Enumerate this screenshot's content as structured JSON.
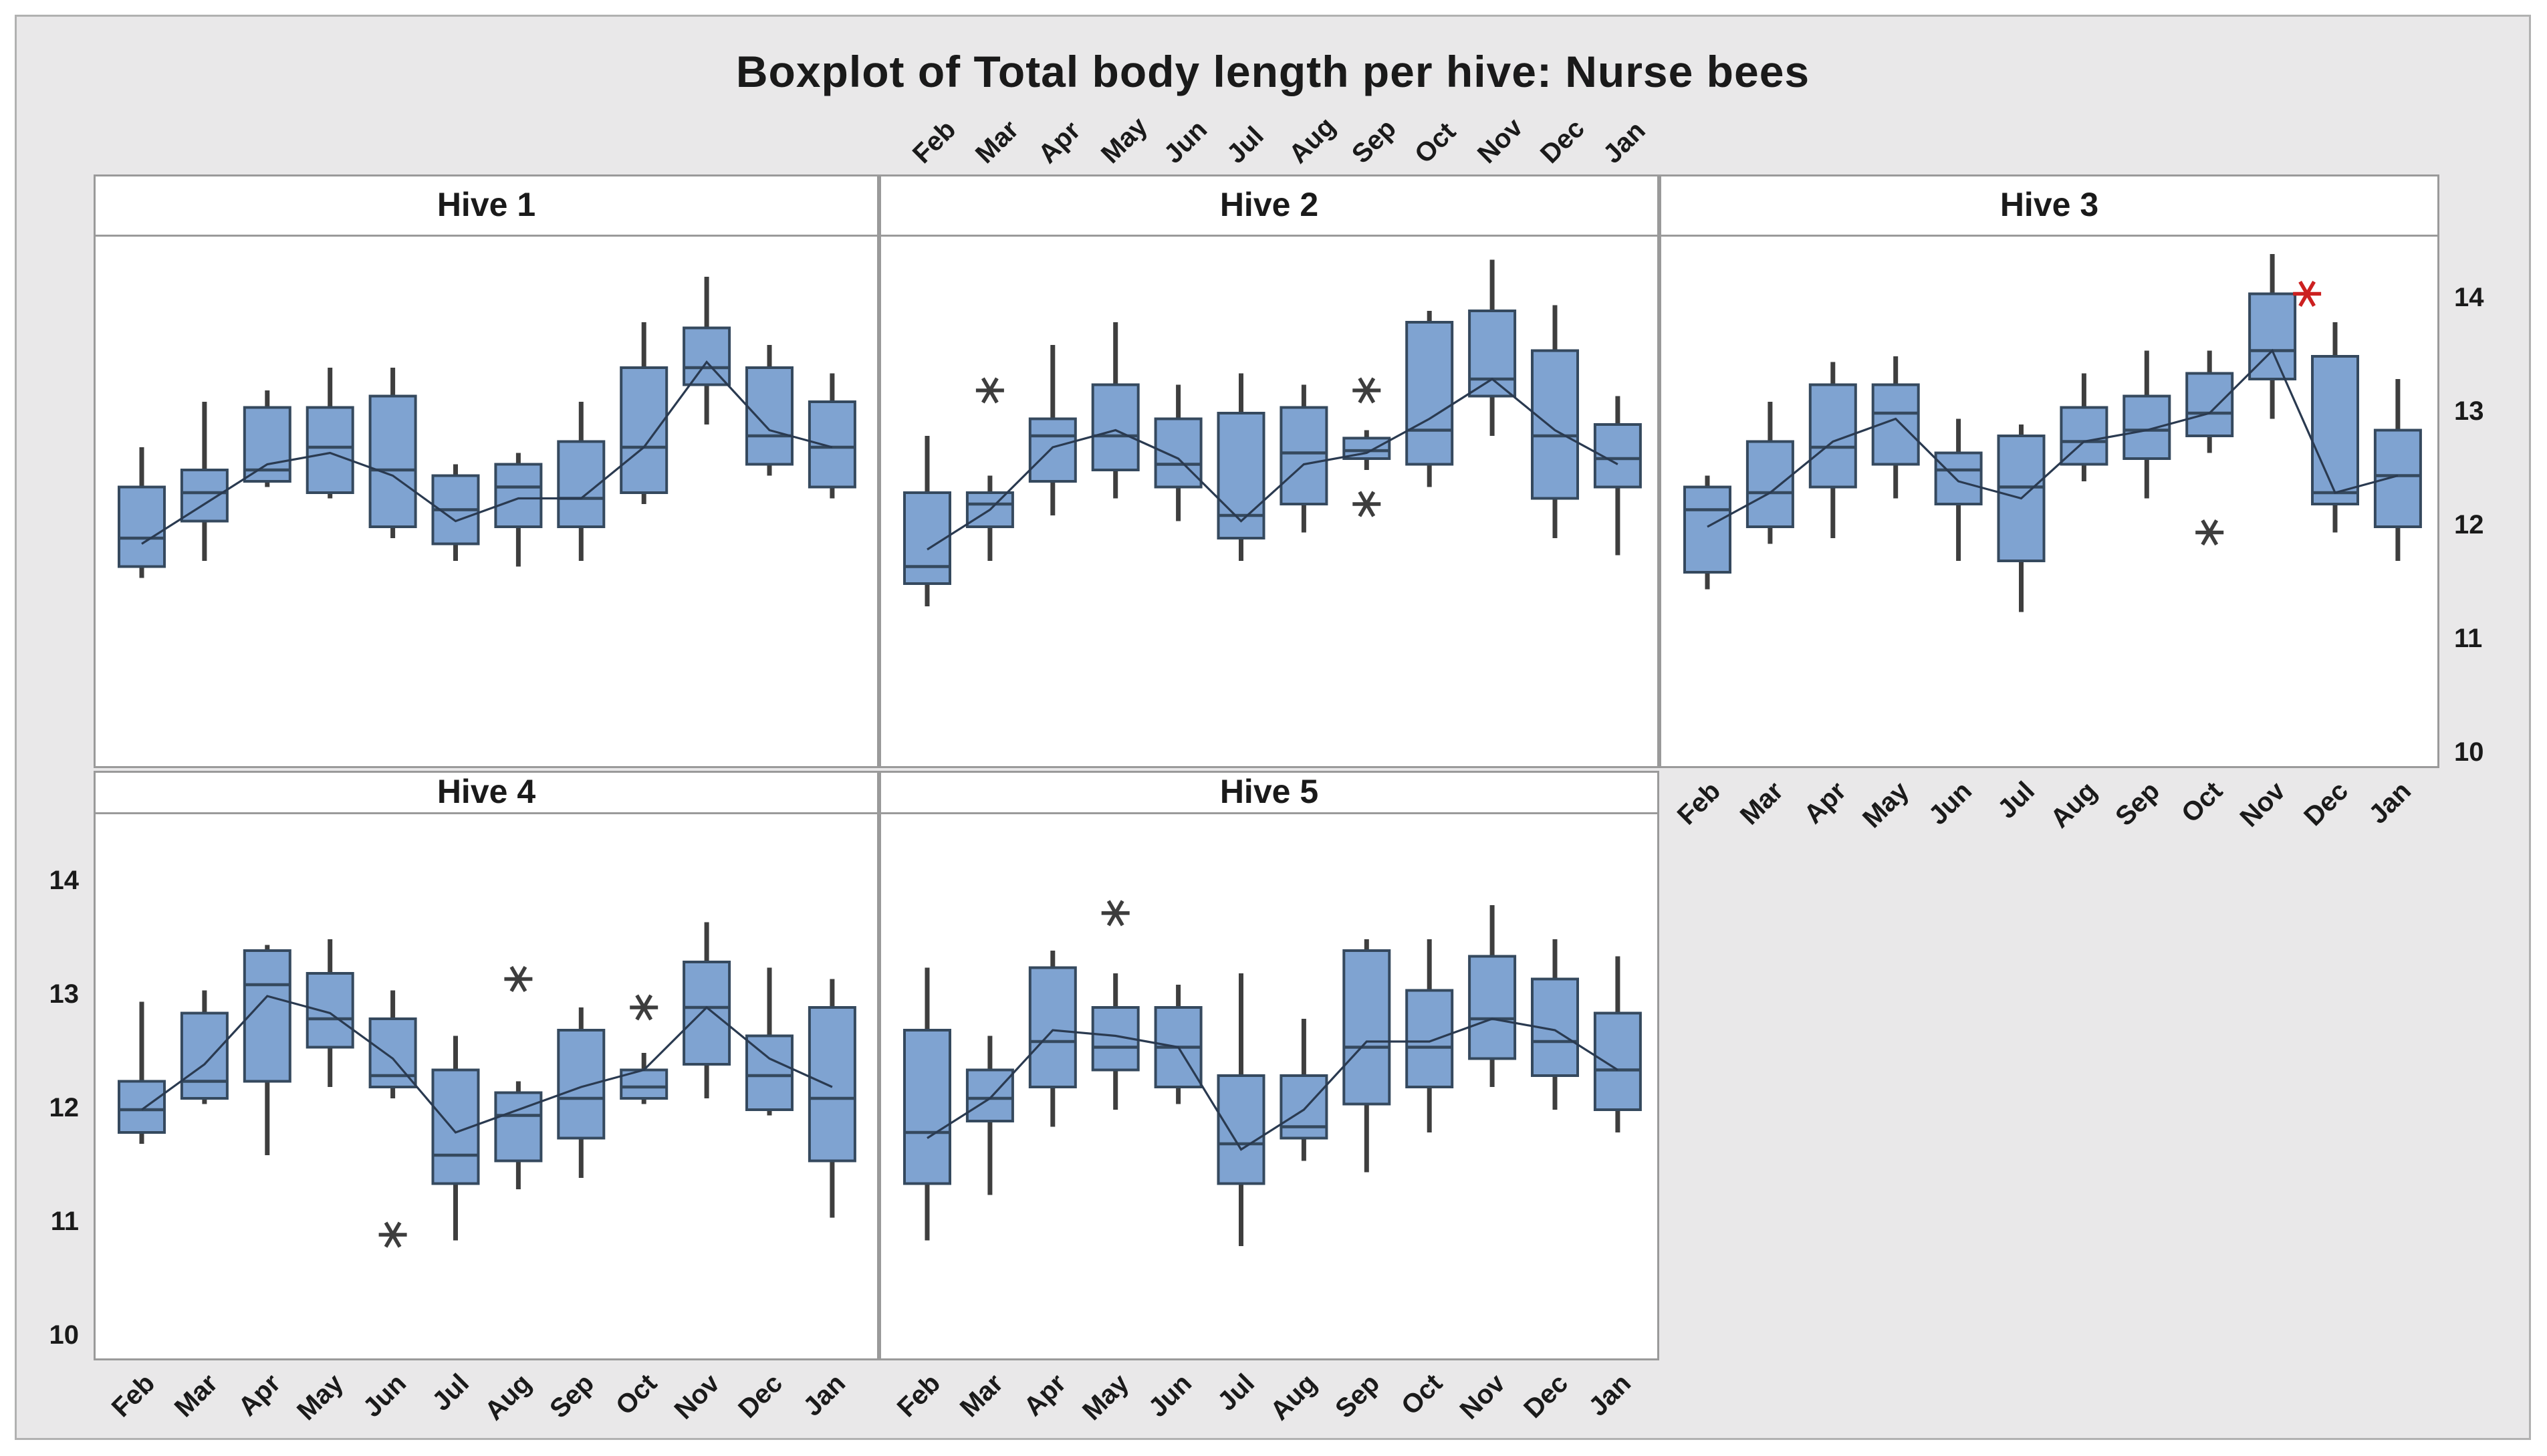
{
  "title": "Boxplot of Total body length per hive: Nurse bees",
  "months": [
    "Feb",
    "Mar",
    "Apr",
    "May",
    "Jun",
    "Jul",
    "Aug",
    "Sep",
    "Oct",
    "Nov",
    "Dec",
    "Jan"
  ],
  "y_axis": {
    "ticks": [
      14,
      13,
      12,
      11,
      10
    ],
    "min": 10,
    "max": 14
  },
  "colors": {
    "figure_bg": "#e9e8e9",
    "panel_bg": "#ffffff",
    "panel_border": "#9a9a9a",
    "box_fill": "#7fa3d1",
    "box_stroke": "#35495e",
    "whisker": "#3e3e3e",
    "median": "#35495e",
    "mean_line": "#2a3a50",
    "outlier": "#3d3d3d",
    "outlier_extreme": "#cc2020",
    "text": "#1a1a1a"
  },
  "chart_data": {
    "type": "boxplot-panel",
    "title": "Boxplot of Total body length per hive: Nurse bees",
    "categories": [
      "Feb",
      "Mar",
      "Apr",
      "May",
      "Jun",
      "Jul",
      "Aug",
      "Sep",
      "Oct",
      "Nov",
      "Dec",
      "Jan"
    ],
    "ylim": [
      10,
      14
    ],
    "y_ticks": [
      14,
      13,
      12,
      11,
      10
    ],
    "legend": "none",
    "grid": false,
    "panels": [
      {
        "name": "Hive 1",
        "row": 0,
        "col": 0,
        "boxes": [
          {
            "month": "Feb",
            "whisker_low": 11.55,
            "q1": 11.65,
            "median": 11.9,
            "q3": 12.35,
            "whisker_high": 12.7,
            "mean": 11.85,
            "outliers": [],
            "outliers_red": []
          },
          {
            "month": "Mar",
            "whisker_low": 11.7,
            "q1": 12.05,
            "median": 12.3,
            "q3": 12.5,
            "whisker_high": 13.1,
            "mean": 12.2,
            "outliers": [],
            "outliers_red": []
          },
          {
            "month": "Apr",
            "whisker_low": 12.35,
            "q1": 12.4,
            "median": 12.5,
            "q3": 13.05,
            "whisker_high": 13.2,
            "mean": 12.55,
            "outliers": [],
            "outliers_red": []
          },
          {
            "month": "May",
            "whisker_low": 12.25,
            "q1": 12.3,
            "median": 12.7,
            "q3": 13.05,
            "whisker_high": 13.4,
            "mean": 12.65,
            "outliers": [],
            "outliers_red": []
          },
          {
            "month": "Jun",
            "whisker_low": 11.9,
            "q1": 12.0,
            "median": 12.5,
            "q3": 13.15,
            "whisker_high": 13.4,
            "mean": 12.45,
            "outliers": [],
            "outliers_red": []
          },
          {
            "month": "Jul",
            "whisker_low": 11.7,
            "q1": 11.85,
            "median": 12.15,
            "q3": 12.45,
            "whisker_high": 12.55,
            "mean": 12.05,
            "outliers": [],
            "outliers_red": []
          },
          {
            "month": "Aug",
            "whisker_low": 11.65,
            "q1": 12.0,
            "median": 12.35,
            "q3": 12.55,
            "whisker_high": 12.65,
            "mean": 12.25,
            "outliers": [],
            "outliers_red": []
          },
          {
            "month": "Sep",
            "whisker_low": 11.7,
            "q1": 12.0,
            "median": 12.25,
            "q3": 12.75,
            "whisker_high": 13.1,
            "mean": 12.25,
            "outliers": [],
            "outliers_red": []
          },
          {
            "month": "Oct",
            "whisker_low": 12.2,
            "q1": 12.3,
            "median": 12.7,
            "q3": 13.4,
            "whisker_high": 13.8,
            "mean": 12.7,
            "outliers": [],
            "outliers_red": []
          },
          {
            "month": "Nov",
            "whisker_low": 12.9,
            "q1": 13.25,
            "median": 13.4,
            "q3": 13.75,
            "whisker_high": 14.2,
            "mean": 13.45,
            "outliers": [],
            "outliers_red": []
          },
          {
            "month": "Dec",
            "whisker_low": 12.45,
            "q1": 12.55,
            "median": 12.8,
            "q3": 13.4,
            "whisker_high": 13.6,
            "mean": 12.85,
            "outliers": [],
            "outliers_red": []
          },
          {
            "month": "Jan",
            "whisker_low": 12.25,
            "q1": 12.35,
            "median": 12.7,
            "q3": 13.1,
            "whisker_high": 13.35,
            "mean": 12.7,
            "outliers": [],
            "outliers_red": []
          }
        ]
      },
      {
        "name": "Hive 2",
        "row": 0,
        "col": 1,
        "boxes": [
          {
            "month": "Feb",
            "whisker_low": 11.3,
            "q1": 11.5,
            "median": 11.65,
            "q3": 12.3,
            "whisker_high": 12.8,
            "mean": 11.8,
            "outliers": [],
            "outliers_red": []
          },
          {
            "month": "Mar",
            "whisker_low": 11.7,
            "q1": 12.0,
            "median": 12.2,
            "q3": 12.3,
            "whisker_high": 12.45,
            "mean": 12.15,
            "outliers": [
              13.2
            ],
            "outliers_red": []
          },
          {
            "month": "Apr",
            "whisker_low": 12.1,
            "q1": 12.4,
            "median": 12.8,
            "q3": 12.95,
            "whisker_high": 13.6,
            "mean": 12.7,
            "outliers": [],
            "outliers_red": []
          },
          {
            "month": "May",
            "whisker_low": 12.25,
            "q1": 12.5,
            "median": 12.8,
            "q3": 13.25,
            "whisker_high": 13.8,
            "mean": 12.85,
            "outliers": [],
            "outliers_red": []
          },
          {
            "month": "Jun",
            "whisker_low": 12.05,
            "q1": 12.35,
            "median": 12.55,
            "q3": 12.95,
            "whisker_high": 13.25,
            "mean": 12.6,
            "outliers": [],
            "outliers_red": []
          },
          {
            "month": "Jul",
            "whisker_low": 11.7,
            "q1": 11.9,
            "median": 12.1,
            "q3": 13.0,
            "whisker_high": 13.35,
            "mean": 12.05,
            "outliers": [],
            "outliers_red": []
          },
          {
            "month": "Aug",
            "whisker_low": 11.95,
            "q1": 12.2,
            "median": 12.65,
            "q3": 13.05,
            "whisker_high": 13.25,
            "mean": 12.55,
            "outliers": [],
            "outliers_red": []
          },
          {
            "month": "Sep",
            "whisker_low": 12.5,
            "q1": 12.6,
            "median": 12.67,
            "q3": 12.78,
            "whisker_high": 12.85,
            "mean": 12.65,
            "outliers": [
              13.2,
              12.2
            ],
            "outliers_red": []
          },
          {
            "month": "Oct",
            "whisker_low": 12.35,
            "q1": 12.55,
            "median": 12.85,
            "q3": 13.8,
            "whisker_high": 13.9,
            "mean": 12.95,
            "outliers": [],
            "outliers_red": []
          },
          {
            "month": "Nov",
            "whisker_low": 12.8,
            "q1": 13.15,
            "median": 13.3,
            "q3": 13.9,
            "whisker_high": 14.35,
            "mean": 13.3,
            "outliers": [],
            "outliers_red": []
          },
          {
            "month": "Dec",
            "whisker_low": 11.9,
            "q1": 12.25,
            "median": 12.8,
            "q3": 13.55,
            "whisker_high": 13.95,
            "mean": 12.85,
            "outliers": [],
            "outliers_red": []
          },
          {
            "month": "Jan",
            "whisker_low": 11.75,
            "q1": 12.35,
            "median": 12.6,
            "q3": 12.9,
            "whisker_high": 13.15,
            "mean": 12.55,
            "outliers": [],
            "outliers_red": []
          }
        ]
      },
      {
        "name": "Hive 3",
        "row": 0,
        "col": 2,
        "boxes": [
          {
            "month": "Feb",
            "whisker_low": 11.45,
            "q1": 11.6,
            "median": 12.15,
            "q3": 12.35,
            "whisker_high": 12.45,
            "mean": 12.0,
            "outliers": [],
            "outliers_red": []
          },
          {
            "month": "Mar",
            "whisker_low": 11.85,
            "q1": 12.0,
            "median": 12.3,
            "q3": 12.75,
            "whisker_high": 13.1,
            "mean": 12.3,
            "outliers": [],
            "outliers_red": []
          },
          {
            "month": "Apr",
            "whisker_low": 11.9,
            "q1": 12.35,
            "median": 12.7,
            "q3": 13.25,
            "whisker_high": 13.45,
            "mean": 12.75,
            "outliers": [],
            "outliers_red": []
          },
          {
            "month": "May",
            "whisker_low": 12.25,
            "q1": 12.55,
            "median": 13.0,
            "q3": 13.25,
            "whisker_high": 13.5,
            "mean": 12.95,
            "outliers": [],
            "outliers_red": []
          },
          {
            "month": "Jun",
            "whisker_low": 11.7,
            "q1": 12.2,
            "median": 12.5,
            "q3": 12.65,
            "whisker_high": 12.95,
            "mean": 12.4,
            "outliers": [],
            "outliers_red": []
          },
          {
            "month": "Jul",
            "whisker_low": 11.25,
            "q1": 11.7,
            "median": 12.35,
            "q3": 12.8,
            "whisker_high": 12.9,
            "mean": 12.25,
            "outliers": [],
            "outliers_red": []
          },
          {
            "month": "Aug",
            "whisker_low": 12.4,
            "q1": 12.55,
            "median": 12.75,
            "q3": 13.05,
            "whisker_high": 13.35,
            "mean": 12.75,
            "outliers": [],
            "outliers_red": []
          },
          {
            "month": "Sep",
            "whisker_low": 12.25,
            "q1": 12.6,
            "median": 12.85,
            "q3": 13.15,
            "whisker_high": 13.55,
            "mean": 12.85,
            "outliers": [],
            "outliers_red": []
          },
          {
            "month": "Oct",
            "whisker_low": 12.65,
            "q1": 12.8,
            "median": 13.0,
            "q3": 13.35,
            "whisker_high": 13.55,
            "mean": 13.0,
            "outliers": [
              11.95
            ],
            "outliers_red": []
          },
          {
            "month": "Nov",
            "whisker_low": 12.95,
            "q1": 13.3,
            "median": 13.55,
            "q3": 14.05,
            "whisker_high": 14.4,
            "mean": 13.55,
            "outliers": [],
            "outliers_red": [
              14.05
            ]
          },
          {
            "month": "Dec",
            "whisker_low": 11.95,
            "q1": 12.2,
            "median": 12.3,
            "q3": 13.5,
            "whisker_high": 13.8,
            "mean": 12.3,
            "outliers": [],
            "outliers_red": []
          },
          {
            "month": "Jan",
            "whisker_low": 11.7,
            "q1": 12.0,
            "median": 12.45,
            "q3": 12.85,
            "whisker_high": 13.3,
            "mean": 12.45,
            "outliers": [],
            "outliers_red": []
          }
        ]
      },
      {
        "name": "Hive 4",
        "row": 1,
        "col": 0,
        "boxes": [
          {
            "month": "Feb",
            "whisker_low": 11.7,
            "q1": 11.8,
            "median": 12.0,
            "q3": 12.25,
            "whisker_high": 12.95,
            "mean": 12.0,
            "outliers": [],
            "outliers_red": []
          },
          {
            "month": "Mar",
            "whisker_low": 12.05,
            "q1": 12.1,
            "median": 12.25,
            "q3": 12.85,
            "whisker_high": 13.05,
            "mean": 12.4,
            "outliers": [],
            "outliers_red": []
          },
          {
            "month": "Apr",
            "whisker_low": 11.6,
            "q1": 12.25,
            "median": 13.1,
            "q3": 13.4,
            "whisker_high": 13.45,
            "mean": 13.0,
            "outliers": [],
            "outliers_red": []
          },
          {
            "month": "May",
            "whisker_low": 12.2,
            "q1": 12.55,
            "median": 12.8,
            "q3": 13.2,
            "whisker_high": 13.5,
            "mean": 12.85,
            "outliers": [],
            "outliers_red": []
          },
          {
            "month": "Jun",
            "whisker_low": 12.1,
            "q1": 12.2,
            "median": 12.3,
            "q3": 12.8,
            "whisker_high": 13.05,
            "mean": 12.45,
            "outliers": [
              10.9
            ],
            "outliers_red": []
          },
          {
            "month": "Jul",
            "whisker_low": 10.85,
            "q1": 11.35,
            "median": 11.6,
            "q3": 12.35,
            "whisker_high": 12.65,
            "mean": 11.8,
            "outliers": [],
            "outliers_red": []
          },
          {
            "month": "Aug",
            "whisker_low": 11.3,
            "q1": 11.55,
            "median": 11.95,
            "q3": 12.15,
            "whisker_high": 12.25,
            "mean": 12.0,
            "outliers": [
              13.15
            ],
            "outliers_red": []
          },
          {
            "month": "Sep",
            "whisker_low": 11.4,
            "q1": 11.75,
            "median": 12.1,
            "q3": 12.7,
            "whisker_high": 12.9,
            "mean": 12.2,
            "outliers": [],
            "outliers_red": []
          },
          {
            "month": "Oct",
            "whisker_low": 12.05,
            "q1": 12.1,
            "median": 12.2,
            "q3": 12.35,
            "whisker_high": 12.5,
            "mean": 12.35,
            "outliers": [
              12.9
            ],
            "outliers_red": []
          },
          {
            "month": "Nov",
            "whisker_low": 12.1,
            "q1": 12.4,
            "median": 12.9,
            "q3": 13.3,
            "whisker_high": 13.65,
            "mean": 12.9,
            "outliers": [],
            "outliers_red": []
          },
          {
            "month": "Dec",
            "whisker_low": 11.95,
            "q1": 12.0,
            "median": 12.3,
            "q3": 12.65,
            "whisker_high": 13.25,
            "mean": 12.45,
            "outliers": [],
            "outliers_red": []
          },
          {
            "month": "Jan",
            "whisker_low": 11.05,
            "q1": 11.55,
            "median": 12.1,
            "q3": 12.9,
            "whisker_high": 13.15,
            "mean": 12.2,
            "outliers": [],
            "outliers_red": []
          }
        ]
      },
      {
        "name": "Hive 5",
        "row": 1,
        "col": 1,
        "boxes": [
          {
            "month": "Feb",
            "whisker_low": 10.85,
            "q1": 11.35,
            "median": 11.8,
            "q3": 12.7,
            "whisker_high": 13.25,
            "mean": 11.75,
            "outliers": [],
            "outliers_red": []
          },
          {
            "month": "Mar",
            "whisker_low": 11.25,
            "q1": 11.9,
            "median": 12.1,
            "q3": 12.35,
            "whisker_high": 12.65,
            "mean": 12.1,
            "outliers": [],
            "outliers_red": []
          },
          {
            "month": "Apr",
            "whisker_low": 11.85,
            "q1": 12.2,
            "median": 12.6,
            "q3": 13.25,
            "whisker_high": 13.4,
            "mean": 12.7,
            "outliers": [],
            "outliers_red": []
          },
          {
            "month": "May",
            "whisker_low": 12.0,
            "q1": 12.35,
            "median": 12.55,
            "q3": 12.9,
            "whisker_high": 13.2,
            "mean": 12.65,
            "outliers": [
              13.73
            ],
            "outliers_red": []
          },
          {
            "month": "Jun",
            "whisker_low": 12.05,
            "q1": 12.2,
            "median": 12.55,
            "q3": 12.9,
            "whisker_high": 13.1,
            "mean": 12.55,
            "outliers": [],
            "outliers_red": []
          },
          {
            "month": "Jul",
            "whisker_low": 10.8,
            "q1": 11.35,
            "median": 11.7,
            "q3": 12.3,
            "whisker_high": 13.2,
            "mean": 11.65,
            "outliers": [],
            "outliers_red": []
          },
          {
            "month": "Aug",
            "whisker_low": 11.55,
            "q1": 11.75,
            "median": 11.85,
            "q3": 12.3,
            "whisker_high": 12.8,
            "mean": 12.0,
            "outliers": [],
            "outliers_red": []
          },
          {
            "month": "Sep",
            "whisker_low": 11.45,
            "q1": 12.05,
            "median": 12.55,
            "q3": 13.4,
            "whisker_high": 13.5,
            "mean": 12.6,
            "outliers": [],
            "outliers_red": []
          },
          {
            "month": "Oct",
            "whisker_low": 11.8,
            "q1": 12.2,
            "median": 12.55,
            "q3": 13.05,
            "whisker_high": 13.5,
            "mean": 12.6,
            "outliers": [],
            "outliers_red": []
          },
          {
            "month": "Nov",
            "whisker_low": 12.2,
            "q1": 12.45,
            "median": 12.8,
            "q3": 13.35,
            "whisker_high": 13.8,
            "mean": 12.8,
            "outliers": [],
            "outliers_red": []
          },
          {
            "month": "Dec",
            "whisker_low": 12.0,
            "q1": 12.3,
            "median": 12.6,
            "q3": 13.15,
            "whisker_high": 13.5,
            "mean": 12.7,
            "outliers": [],
            "outliers_red": []
          },
          {
            "month": "Jan",
            "whisker_low": 11.8,
            "q1": 12.0,
            "median": 12.35,
            "q3": 12.85,
            "whisker_high": 13.35,
            "mean": 12.35,
            "outliers": [],
            "outliers_red": []
          }
        ]
      }
    ]
  }
}
